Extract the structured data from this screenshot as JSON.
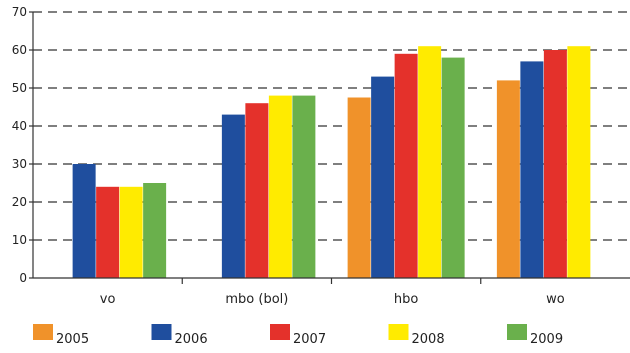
{
  "chart_data": {
    "type": "bar",
    "categories": [
      "vo",
      "mbo (bol)",
      "hbo",
      "wo"
    ],
    "series": [
      {
        "name": "2005",
        "color": "#F0922A",
        "values": [
          null,
          null,
          47.5,
          52
        ]
      },
      {
        "name": "2006",
        "color": "#1F4E9E",
        "values": [
          30,
          43,
          53,
          57
        ]
      },
      {
        "name": "2007",
        "color": "#E4312B",
        "values": [
          24,
          46,
          59,
          60
        ]
      },
      {
        "name": "2008",
        "color": "#FFEB00",
        "values": [
          24,
          48,
          61,
          61
        ]
      },
      {
        "name": "2009",
        "color": "#6AB04C",
        "values": [
          25,
          48,
          58,
          null
        ]
      }
    ],
    "ylim": [
      0,
      70
    ],
    "yticks": [
      0,
      10,
      20,
      30,
      40,
      50,
      60,
      70
    ],
    "title": "",
    "xlabel": "",
    "ylabel": "",
    "grid": true,
    "legend_position": "bottom"
  }
}
